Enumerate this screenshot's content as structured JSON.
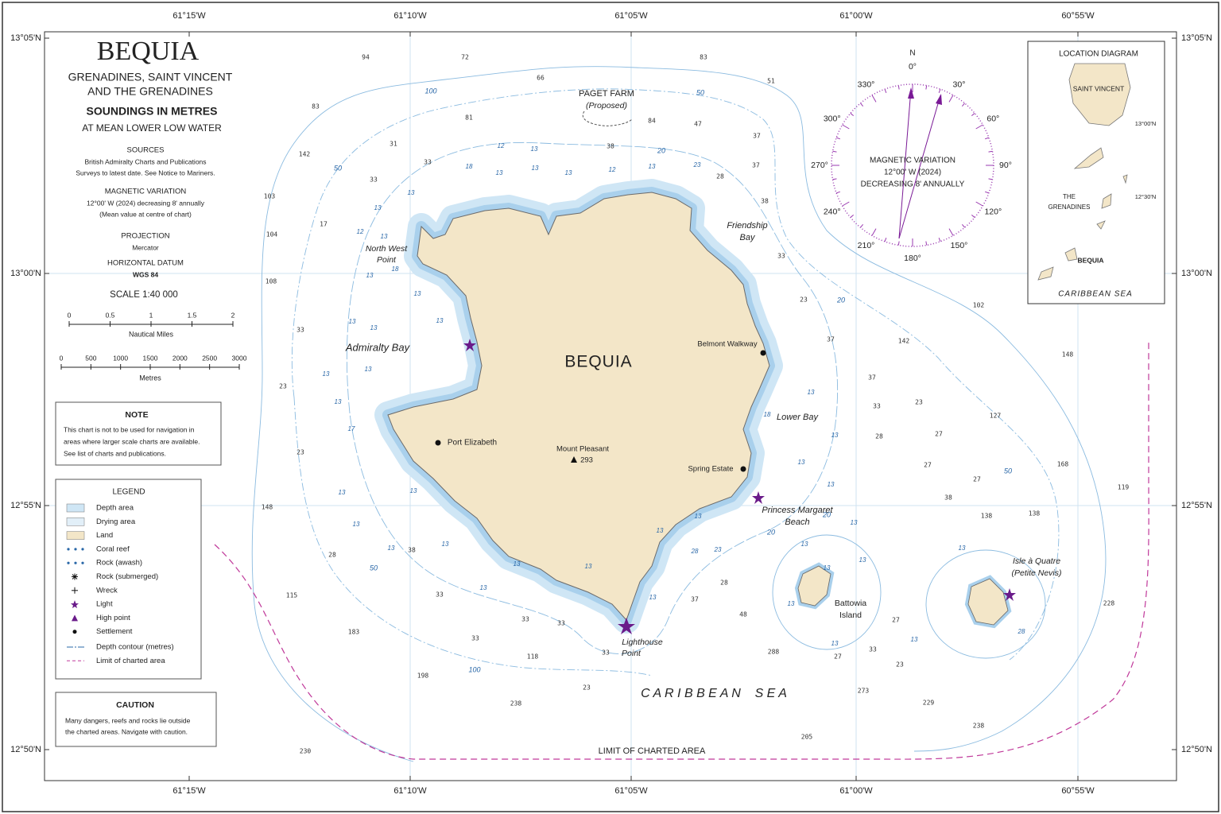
{
  "header": {
    "title": "BEQUIA",
    "subtitle": [
      "GRENADINES, SAINT VINCENT",
      "AND THE GRENADINES"
    ],
    "soundings": "SOUNDINGS IN METRES",
    "datum": "AT MEAN LOWER LOW WATER"
  },
  "info": [
    {
      "heading": "SOURCES",
      "lines": [
        "British Admiralty Charts and Publications",
        "Surveys to latest date.  See Notice to Mariners."
      ]
    },
    {
      "heading": "MAGNETIC VARIATION",
      "lines": [
        "12°00' W (2024) decreasing 8' annually",
        "(Mean value at centre of chart)"
      ]
    },
    {
      "heading": "PROJECTION",
      "lines": [
        "Mercator"
      ]
    },
    {
      "heading": "HORIZONTAL DATUM",
      "lines": [
        "WGS 84"
      ]
    }
  ],
  "scale": {
    "title": "SCALE 1:40 000",
    "nautical_miles": {
      "ticks": [
        0,
        0.5,
        1,
        1.5,
        2
      ],
      "label": "Nautical Miles"
    },
    "metres": {
      "ticks": [
        0,
        500,
        1000,
        1500,
        2000,
        2500,
        3000
      ],
      "label": "Metres"
    }
  },
  "note": {
    "heading": "NOTE",
    "lines": [
      "This chart is not to be used for navigation in",
      "areas where larger scale charts are available.",
      "See list of charts and publications."
    ]
  },
  "legend": {
    "heading": "LEGEND",
    "items": [
      "Depth area",
      "Drying area",
      "Land",
      "Coral reef",
      "Rock (awash)",
      "Rock (submerged)",
      "Wreck",
      "Light",
      "High point",
      "Settlement",
      "Depth contour (metres)",
      "Limit of charted area"
    ]
  },
  "caution": {
    "heading": "CAUTION",
    "lines": [
      "Many dangers, reefs and rocks lie outside",
      "the charted areas.   Navigate with caution."
    ]
  },
  "graticule": {
    "longitudes": [
      "61°15'W",
      "61°10'W",
      "61°05'W",
      "61°00'W",
      "60°55'W"
    ],
    "latitudes": [
      "13°05'N",
      "13°00'N",
      "12°55'N",
      "12°50'N"
    ]
  },
  "places": [
    "BEQUIA",
    "Admiralty Bay",
    "North West",
    "Point",
    "Friendship",
    "Bay",
    "Belmont Walkway",
    "Lower Bay",
    "Port Elizabeth",
    "Mount Pleasant",
    "293",
    "Spring Estate",
    "Princess Margaret",
    "Beach",
    "Lighthouse",
    "Point",
    "Battowia",
    "Island",
    "Isle à Quatre",
    "(Petite Nevis)",
    "C A R I B B E A N    S E A",
    "PAGET FARM",
    "(Proposed)",
    "LIMIT OF CHARTED AREA"
  ],
  "compass": {
    "north": "N",
    "bearings": [
      "0°",
      "30°",
      "60°",
      "90°",
      "120°",
      "150°",
      "180°",
      "210°",
      "240°",
      "270°",
      "300°",
      "330°"
    ],
    "lines": [
      "MAGNETIC VARIATION",
      "12°00' W (2024)",
      "DECREASING 8' ANNUALLY"
    ]
  },
  "location_diagram": {
    "title": "LOCATION DIAGRAM",
    "labels": [
      "SAINT VINCENT",
      "13°00'N",
      "THE",
      "GRENADINES",
      "12°30'N",
      "BEQUIA",
      "CARIBBEAN SEA"
    ]
  },
  "soundings": [
    94,
    72,
    66,
    83,
    51,
    83,
    81,
    84,
    47,
    37,
    31,
    38,
    142,
    33,
    37,
    33,
    28,
    103,
    38,
    17,
    104,
    33,
    108,
    23,
    102,
    33,
    37,
    142,
    148,
    37,
    23,
    33,
    23,
    127,
    28,
    27,
    23,
    27,
    168,
    27,
    119,
    38,
    148,
    138,
    138,
    28,
    38,
    115,
    33,
    37,
    28,
    48,
    33,
    33,
    228,
    27,
    183,
    33,
    118,
    33,
    288,
    27,
    33,
    23,
    198,
    23,
    238,
    273,
    229,
    238,
    230,
    205
  ],
  "nearshore_soundings": [
    12,
    13,
    18,
    13,
    13,
    13,
    12,
    13,
    23,
    13,
    13,
    12,
    13,
    18,
    13,
    13,
    13,
    13,
    13,
    13,
    13,
    13,
    17,
    13,
    13,
    13,
    13,
    18,
    13,
    13,
    13,
    13,
    13,
    23,
    28,
    13,
    13,
    13,
    13,
    13,
    13,
    13,
    13,
    13,
    13,
    13,
    13,
    13,
    13,
    28
  ],
  "contour_labels": [
    100,
    50,
    50,
    20,
    20,
    50,
    20,
    50,
    100,
    20
  ]
}
